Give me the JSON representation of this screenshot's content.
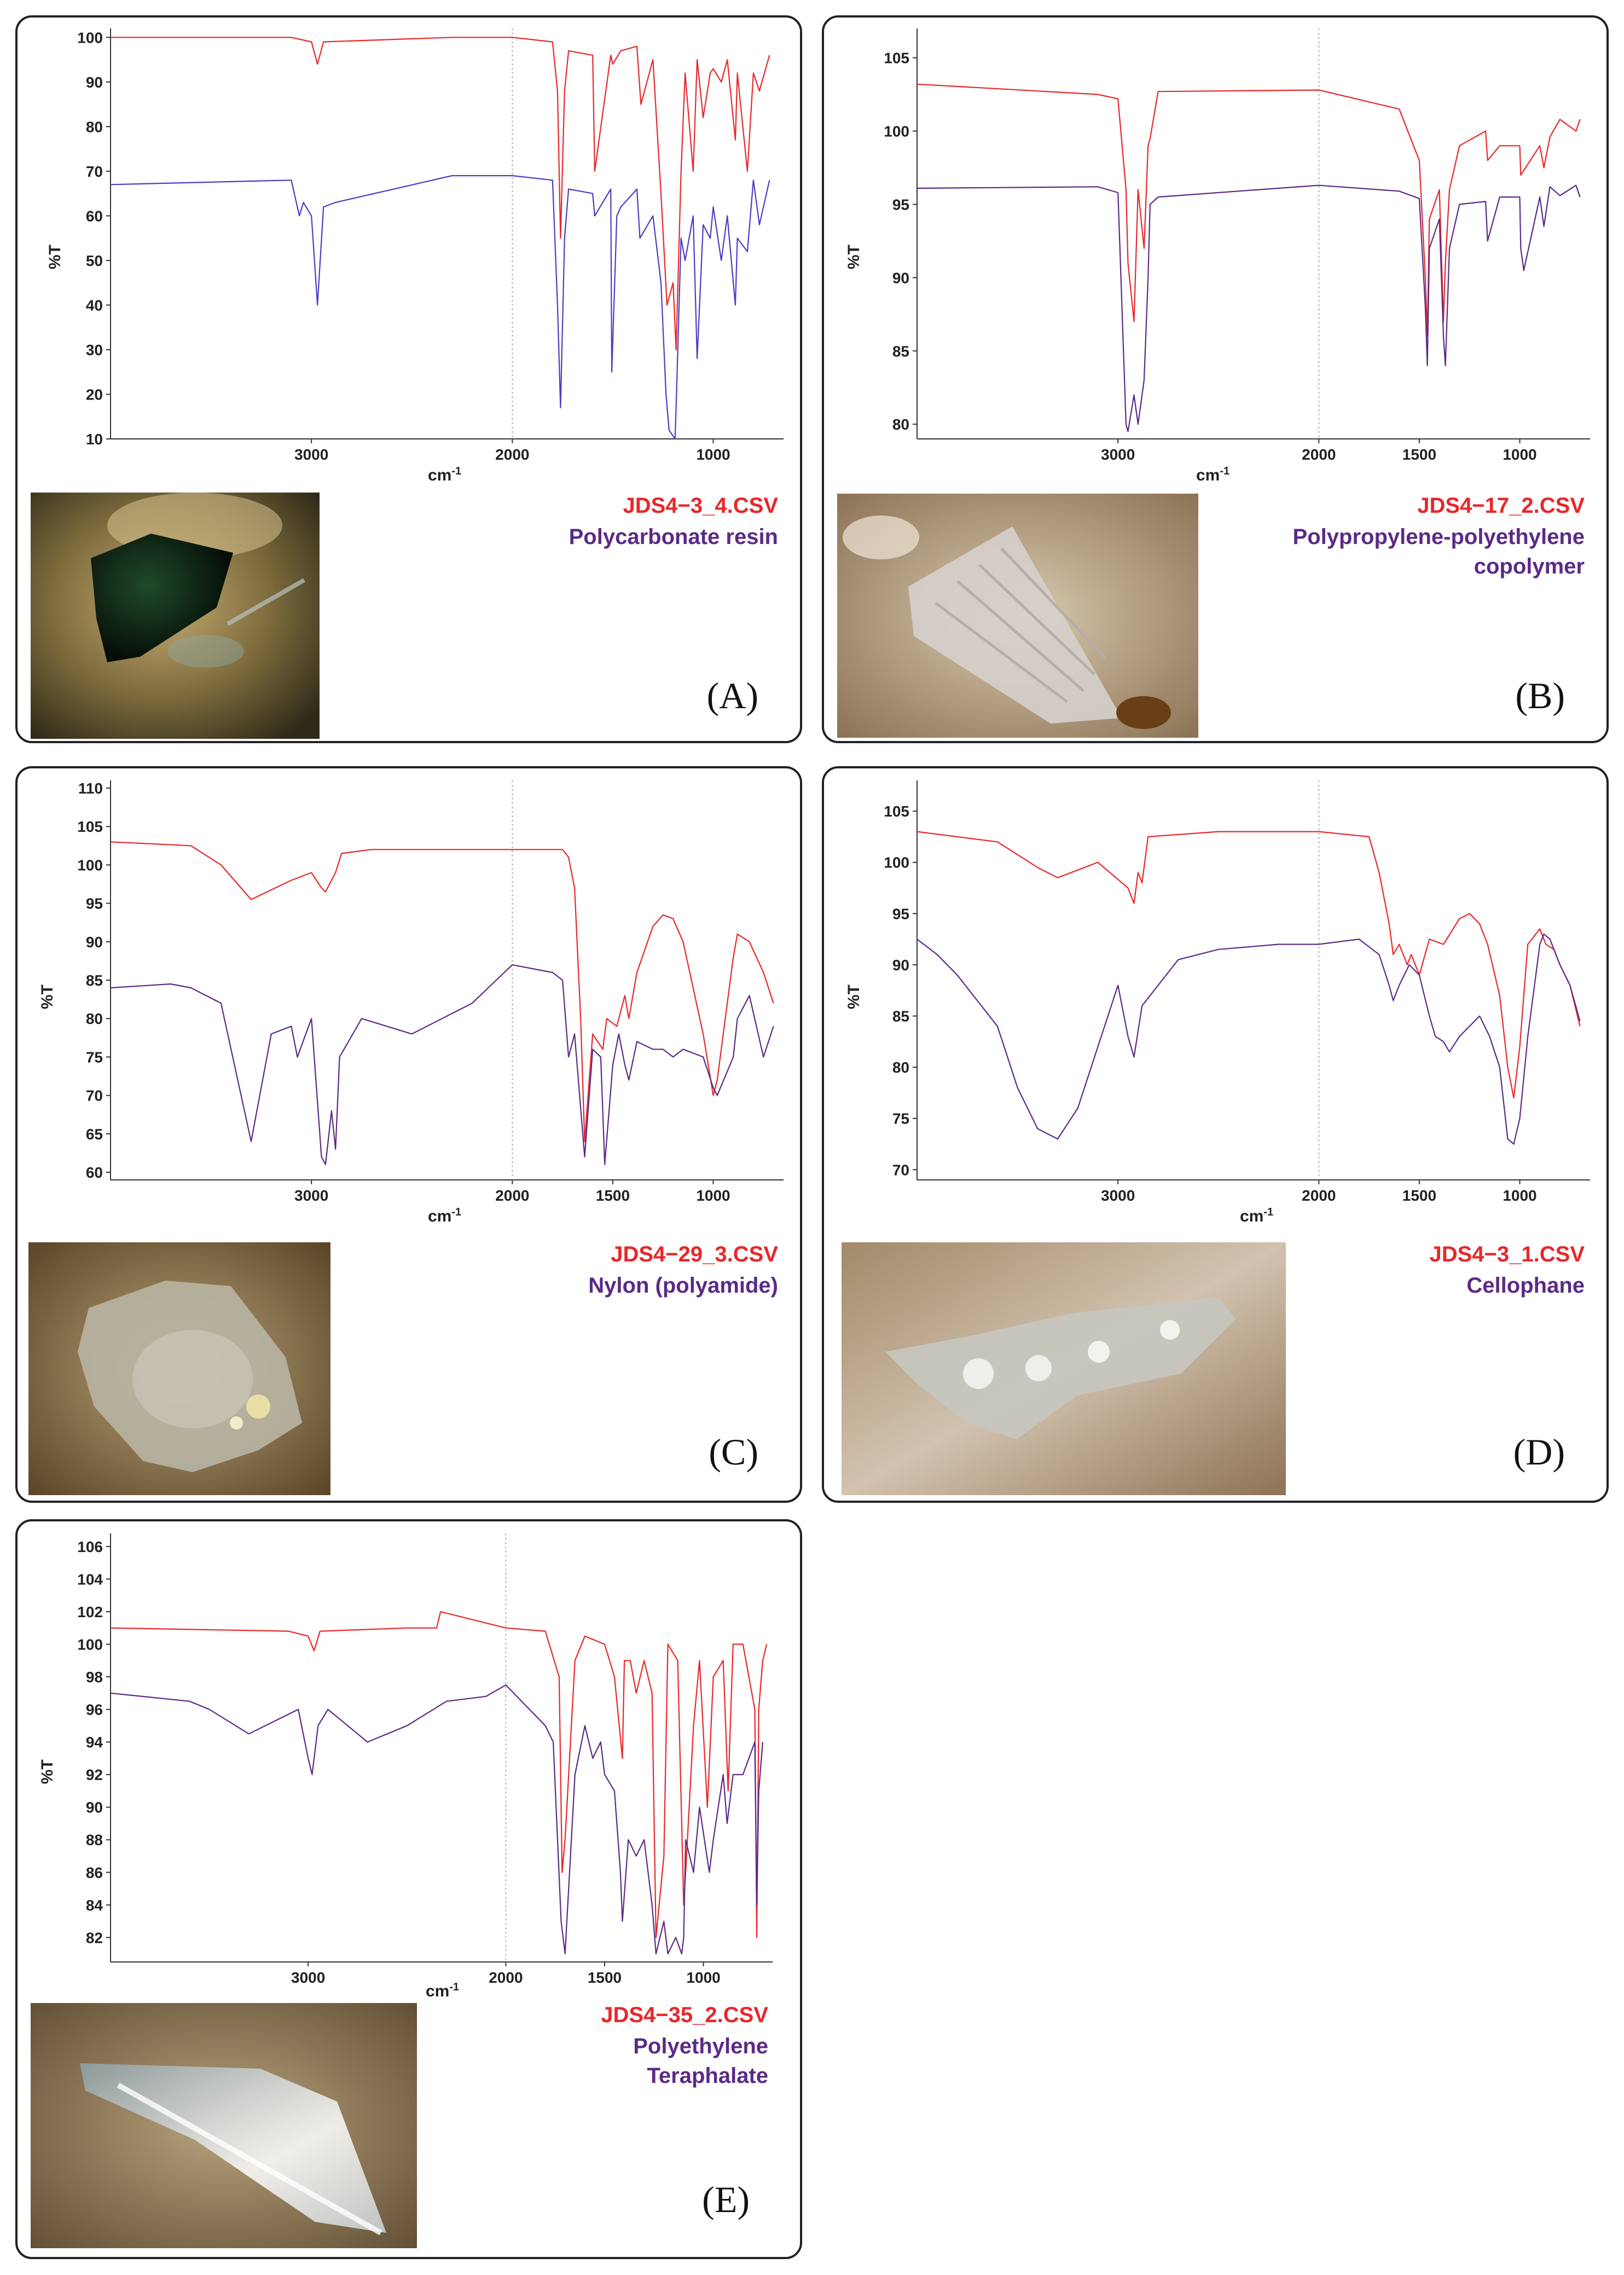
{
  "chart_data": [
    {
      "type": "line",
      "panel_label": "(A)",
      "file_name": "JDS4−3_4.CSV",
      "polymer_name": [
        "Polycarbonate resin"
      ],
      "ylabel": "%T",
      "xlabel": "cm",
      "xlabel_sup": "-1",
      "xlim": [
        4000,
        650
      ],
      "ylim": [
        10,
        102
      ],
      "x_reverse": true,
      "yticks": [
        "10",
        "20",
        "30",
        "40",
        "50",
        "60",
        "70",
        "80",
        "90",
        "100"
      ],
      "xticks": [
        "3000",
        "2000",
        "1000"
      ],
      "grid": "dotted line at 2000",
      "series": [
        {
          "color": "#e8272a",
          "x": [
            4000,
            3100,
            3000,
            2970,
            2940,
            2300,
            2000,
            1800,
            1775,
            1760,
            1740,
            1720,
            1600,
            1590,
            1510,
            1500,
            1460,
            1380,
            1360,
            1300,
            1260,
            1230,
            1200,
            1185,
            1160,
            1140,
            1100,
            1080,
            1050,
            1015,
            1000,
            960,
            930,
            890,
            880,
            830,
            800,
            770,
            720
          ],
          "values": [
            100,
            100,
            99,
            94,
            99,
            100,
            100,
            99,
            88,
            55,
            88,
            97,
            96,
            70,
            96,
            94,
            97,
            98,
            85,
            95,
            65,
            40,
            45,
            30,
            70,
            92,
            70,
            95,
            82,
            92,
            93,
            90,
            95,
            77,
            92,
            70,
            92,
            88,
            96
          ]
        },
        {
          "color": "#4b3cc8",
          "x": [
            4000,
            3100,
            3060,
            3040,
            3000,
            2970,
            2940,
            2880,
            2300,
            2000,
            1800,
            1775,
            1760,
            1740,
            1720,
            1600,
            1590,
            1510,
            1505,
            1480,
            1460,
            1380,
            1365,
            1300,
            1260,
            1235,
            1220,
            1190,
            1185,
            1160,
            1140,
            1100,
            1080,
            1050,
            1015,
            1000,
            960,
            930,
            890,
            880,
            830,
            800,
            770,
            720
          ],
          "values": [
            67,
            68,
            60,
            63,
            60,
            40,
            62,
            63,
            69,
            69,
            68,
            40,
            17,
            55,
            66,
            65,
            60,
            66,
            25,
            60,
            62,
            66,
            55,
            60,
            45,
            20,
            12,
            10,
            17,
            55,
            50,
            60,
            28,
            58,
            55,
            62,
            50,
            60,
            40,
            55,
            52,
            68,
            58,
            68
          ]
        }
      ]
    },
    {
      "type": "line",
      "panel_label": "(B)",
      "file_name": "JDS4−17_2.CSV",
      "polymer_name": [
        "Polypropylene-polyethylene",
        "copolymer"
      ],
      "ylabel": "%T",
      "xlabel": "cm",
      "xlabel_sup": "-1",
      "xlim": [
        4000,
        650
      ],
      "ylim": [
        79,
        107
      ],
      "x_reverse": true,
      "yticks": [
        "80",
        "85",
        "90",
        "95",
        "100",
        "105"
      ],
      "xticks": [
        "3000",
        "2000",
        "1500",
        "1000"
      ],
      "grid": "dotted line at 2000",
      "series": [
        {
          "color": "#e8272a",
          "x": [
            4000,
            3100,
            3000,
            2960,
            2950,
            2920,
            2900,
            2870,
            2850,
            2840,
            2800,
            2000,
            1600,
            1500,
            1470,
            1460,
            1450,
            1400,
            1380,
            1370,
            1350,
            1300,
            1170,
            1160,
            1100,
            1000,
            995,
            900,
            880,
            850,
            800,
            720,
            700
          ],
          "values": [
            103.2,
            102.5,
            102.2,
            96,
            91,
            87,
            96,
            92,
            99,
            99.5,
            102.7,
            102.8,
            101.5,
            98,
            90,
            86,
            94,
            96,
            87,
            91,
            96,
            99,
            100,
            98,
            99,
            99,
            97,
            99,
            97.5,
            99.6,
            100.8,
            100,
            100.8
          ]
        },
        {
          "color": "#5b2a86",
          "x": [
            4000,
            3100,
            3000,
            2960,
            2950,
            2920,
            2900,
            2870,
            2850,
            2840,
            2800,
            2000,
            1600,
            1500,
            1470,
            1460,
            1450,
            1400,
            1380,
            1370,
            1350,
            1300,
            1170,
            1160,
            1100,
            1000,
            995,
            980,
            900,
            880,
            850,
            800,
            720,
            700
          ],
          "values": [
            96.1,
            96.2,
            95.8,
            80,
            79.5,
            82,
            80,
            83,
            90,
            95,
            95.5,
            96.3,
            95.9,
            95.4,
            88,
            84,
            92,
            94,
            86,
            84,
            92,
            95,
            95.2,
            92.5,
            95.5,
            95.5,
            92,
            90.5,
            95.5,
            93.5,
            96.2,
            95.6,
            96.3,
            95.5
          ]
        }
      ]
    },
    {
      "type": "line",
      "panel_label": "(C)",
      "file_name": "JDS4−29_3.CSV",
      "polymer_name": [
        "Nylon (polyamide)"
      ],
      "ylabel": "%T",
      "xlabel": "cm",
      "xlabel_sup": "-1",
      "xlim": [
        4000,
        650
      ],
      "ylim": [
        59,
        111
      ],
      "x_reverse": true,
      "yticks": [
        "60",
        "65",
        "70",
        "75",
        "80",
        "85",
        "90",
        "95",
        "100",
        "105",
        "110"
      ],
      "xticks": [
        "3000",
        "2000",
        "1500",
        "1000"
      ],
      "grid": "dotted line at 2000",
      "series": [
        {
          "color": "#e8272a",
          "x": [
            4000,
            3600,
            3450,
            3300,
            3100,
            3000,
            2950,
            2930,
            2880,
            2850,
            2700,
            2000,
            1750,
            1720,
            1690,
            1660,
            1640,
            1600,
            1550,
            1530,
            1480,
            1440,
            1420,
            1380,
            1300,
            1250,
            1200,
            1150,
            1050,
            1000,
            980,
            900,
            880,
            820,
            750,
            700
          ],
          "values": [
            103,
            102.5,
            100,
            95.5,
            98,
            99,
            97,
            96.5,
            99,
            101.5,
            102,
            102,
            102,
            101,
            97,
            80,
            64,
            78,
            76,
            80,
            79,
            83,
            80,
            86,
            92,
            93.5,
            93,
            90,
            78,
            70,
            72,
            88,
            91,
            90,
            86,
            82
          ]
        },
        {
          "color": "#5b2a86",
          "x": [
            4000,
            3700,
            3600,
            3450,
            3300,
            3200,
            3100,
            3070,
            3000,
            2950,
            2930,
            2900,
            2880,
            2860,
            2750,
            2500,
            2200,
            2000,
            1800,
            1750,
            1720,
            1690,
            1640,
            1600,
            1560,
            1540,
            1500,
            1470,
            1440,
            1420,
            1380,
            1300,
            1250,
            1200,
            1150,
            1050,
            1000,
            980,
            900,
            880,
            820,
            750,
            700
          ],
          "values": [
            84,
            84.5,
            84,
            82,
            64,
            78,
            79,
            75,
            80,
            62,
            61,
            68,
            63,
            75,
            80,
            78,
            82,
            87,
            86,
            85,
            75,
            78,
            62,
            76,
            75,
            61,
            74,
            78,
            74,
            72,
            77,
            76,
            76,
            75,
            76,
            75,
            71,
            70,
            75,
            80,
            83,
            75,
            79
          ]
        }
      ]
    },
    {
      "type": "line",
      "panel_label": "(D)",
      "file_name": "JDS4−3_1.CSV",
      "polymer_name": [
        "Cellophane"
      ],
      "ylabel": "%T",
      "xlabel": "cm",
      "xlabel_sup": "-1",
      "xlim": [
        4000,
        650
      ],
      "ylim": [
        69,
        108
      ],
      "x_reverse": true,
      "yticks": [
        "70",
        "75",
        "80",
        "85",
        "90",
        "95",
        "100",
        "105"
      ],
      "xticks": [
        "3000",
        "2000",
        "1500",
        "1000"
      ],
      "grid": "dotted line at 2000",
      "series": [
        {
          "color": "#e8272a",
          "x": [
            4000,
            3600,
            3400,
            3300,
            3100,
            2950,
            2920,
            2900,
            2880,
            2850,
            2500,
            2000,
            1750,
            1700,
            1650,
            1630,
            1600,
            1560,
            1540,
            1500,
            1450,
            1380,
            1300,
            1250,
            1200,
            1160,
            1100,
            1060,
            1030,
            1000,
            960,
            900,
            870,
            830,
            800,
            750,
            700
          ],
          "values": [
            103,
            102,
            99.5,
            98.5,
            100,
            97.5,
            96,
            99,
            98,
            102.5,
            103,
            103,
            102.5,
            99,
            94,
            91,
            92,
            90,
            91,
            89,
            92.5,
            92,
            94.5,
            95,
            94,
            92,
            87,
            80,
            77,
            82,
            92,
            93.5,
            92,
            91.5,
            90,
            88,
            84
          ]
        },
        {
          "color": "#5b2a86",
          "x": [
            4000,
            3900,
            3800,
            3600,
            3500,
            3400,
            3300,
            3200,
            3000,
            2950,
            2920,
            2880,
            2700,
            2500,
            2200,
            2000,
            1800,
            1700,
            1650,
            1630,
            1600,
            1550,
            1500,
            1450,
            1420,
            1380,
            1350,
            1300,
            1250,
            1200,
            1150,
            1100,
            1060,
            1030,
            1000,
            960,
            900,
            880,
            850,
            820,
            800,
            750,
            700
          ],
          "values": [
            92.5,
            91,
            89,
            84,
            78,
            74,
            73,
            76,
            88,
            83,
            81,
            86,
            90.5,
            91.5,
            92,
            92,
            92.5,
            91,
            88,
            86.5,
            88,
            90,
            89,
            85,
            83,
            82.5,
            81.5,
            83,
            84,
            85,
            83,
            80,
            73,
            72.5,
            75,
            83,
            92,
            93,
            92.5,
            91,
            90,
            88,
            84.5
          ]
        }
      ]
    },
    {
      "type": "line",
      "panel_label": "(E)",
      "file_name": "JDS4−35_2.CSV",
      "polymer_name": [
        "Polyethylene",
        "Teraphalate"
      ],
      "ylabel": "%T",
      "xlabel": "cm",
      "xlabel_sup": "-1",
      "xlim": [
        4000,
        650
      ],
      "ylim": [
        80.5,
        106.8
      ],
      "x_reverse": true,
      "yticks": [
        "82",
        "84",
        "86",
        "88",
        "90",
        "92",
        "94",
        "96",
        "98",
        "100",
        "102",
        "104",
        "106"
      ],
      "xticks": [
        "3000",
        "2000",
        "1500",
        "1000"
      ],
      "grid": "dotted line at 2000",
      "series": [
        {
          "color": "#e8272a",
          "x": [
            4000,
            3100,
            3000,
            2970,
            2940,
            2500,
            2350,
            2330,
            2000,
            1800,
            1730,
            1715,
            1700,
            1650,
            1600,
            1500,
            1450,
            1410,
            1400,
            1370,
            1340,
            1300,
            1260,
            1240,
            1200,
            1180,
            1130,
            1100,
            1090,
            1050,
            1020,
            980,
            950,
            900,
            875,
            850,
            800,
            740,
            730,
            720,
            700,
            680
          ],
          "values": [
            101,
            100.8,
            100.5,
            99.6,
            100.8,
            101,
            101,
            102,
            101,
            100.8,
            98,
            86,
            88,
            99,
            100.5,
            100,
            98,
            93,
            99,
            99,
            97,
            99,
            97,
            82,
            87,
            100,
            99,
            84,
            86,
            95,
            99,
            90,
            98,
            99,
            91,
            100,
            100,
            96,
            82,
            96,
            99,
            100
          ]
        },
        {
          "color": "#5b2a86",
          "x": [
            4000,
            3600,
            3500,
            3300,
            3050,
            3000,
            2980,
            2950,
            2900,
            2700,
            2500,
            2300,
            2100,
            2000,
            1800,
            1760,
            1720,
            1700,
            1650,
            1600,
            1560,
            1520,
            1500,
            1450,
            1420,
            1410,
            1380,
            1340,
            1300,
            1260,
            1240,
            1200,
            1180,
            1140,
            1110,
            1100,
            1090,
            1050,
            1020,
            970,
            950,
            900,
            880,
            850,
            800,
            740,
            730,
            720,
            700
          ],
          "values": [
            97,
            96.5,
            96,
            94.5,
            96,
            93,
            92,
            95,
            96,
            94,
            95,
            96.5,
            96.8,
            97.5,
            95,
            94,
            83,
            81,
            92,
            95,
            93,
            94,
            92,
            91,
            86,
            83,
            88,
            87,
            88,
            84,
            81,
            83,
            81,
            82,
            81,
            82,
            88,
            86,
            90,
            86,
            88,
            92,
            89,
            92,
            92,
            94,
            84,
            91,
            94
          ]
        }
      ]
    }
  ]
}
